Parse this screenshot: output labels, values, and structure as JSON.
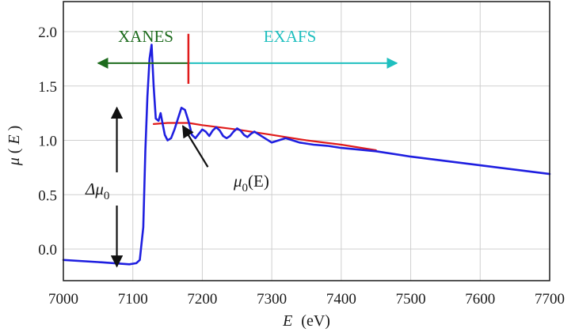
{
  "chart_data": {
    "type": "line",
    "xlim": [
      7000,
      7700
    ],
    "ylim": [
      -0.3,
      2.2
    ],
    "x_ticks": [
      7000,
      7100,
      7200,
      7300,
      7400,
      7500,
      7600,
      7700
    ],
    "y_ticks": [
      -0.0,
      0.5,
      1.0,
      1.5,
      2.0
    ],
    "y_tick_labels": [
      "0.0",
      "0.5",
      "1.0",
      "1.5",
      "2.0"
    ],
    "grid": true,
    "xlabel": {
      "var": "E",
      "unit": "(eV)"
    },
    "ylabel": {
      "var": "μ",
      "open": "(",
      "arg": "E",
      "close": ")"
    },
    "series": [
      {
        "color": "#1f1fe0",
        "x": [
          7000,
          7050,
          7095,
          7105,
          7110,
          7115,
          7118,
          7121,
          7124,
          7127,
          7130,
          7133,
          7137,
          7140,
          7143,
          7146,
          7150,
          7155,
          7160,
          7165,
          7170,
          7175,
          7180,
          7185,
          7190,
          7195,
          7200,
          7205,
          7210,
          7215,
          7220,
          7225,
          7230,
          7235,
          7240,
          7245,
          7250,
          7255,
          7260,
          7265,
          7270,
          7275,
          7280,
          7290,
          7300,
          7310,
          7320,
          7330,
          7340,
          7350,
          7360,
          7380,
          7400,
          7450,
          7500,
          7550,
          7600,
          7650,
          7700
        ],
        "y": [
          -0.1,
          -0.12,
          -0.14,
          -0.13,
          -0.1,
          0.2,
          0.9,
          1.4,
          1.75,
          1.88,
          1.5,
          1.2,
          1.18,
          1.25,
          1.15,
          1.05,
          1.0,
          1.02,
          1.1,
          1.2,
          1.3,
          1.28,
          1.18,
          1.05,
          1.02,
          1.06,
          1.1,
          1.08,
          1.04,
          1.09,
          1.12,
          1.09,
          1.04,
          1.02,
          1.04,
          1.08,
          1.11,
          1.09,
          1.05,
          1.03,
          1.06,
          1.08,
          1.06,
          1.02,
          0.98,
          1.0,
          1.02,
          1.0,
          0.98,
          0.97,
          0.96,
          0.95,
          0.93,
          0.9,
          0.85,
          0.81,
          0.77,
          0.73,
          0.69
        ]
      },
      {
        "color": "#e01b1b",
        "x": [
          7130,
          7150,
          7180,
          7200,
          7250,
          7300,
          7350,
          7400,
          7450
        ],
        "y": [
          1.15,
          1.16,
          1.16,
          1.14,
          1.1,
          1.05,
          1.0,
          0.96,
          0.91
        ]
      }
    ],
    "annotations": [
      {
        "text": "XANES",
        "color": "#1d6b1d"
      },
      {
        "text": "EXAFS",
        "color": "#1fbfbf"
      },
      {
        "text_main": "Δμ",
        "text_sub": "0",
        "color": "#1a1a1a"
      },
      {
        "text_main": "μ",
        "text_sub": "0",
        "text_tail": "(E)",
        "color": "#1a1a1a"
      }
    ],
    "xanes_arrow": {
      "x_from": 7180,
      "x_to": 7050,
      "y": 1.71,
      "color": "#1d6b1d"
    },
    "exafs_arrow": {
      "x_from": 7180,
      "x_to": 7480,
      "y": 1.71,
      "color": "#1fbfbf"
    },
    "edge_marker": {
      "x": 7180,
      "y_from": 1.52,
      "y_to": 1.98,
      "color": "#e01b1b"
    },
    "delta_mu_arrow": {
      "x": 7077,
      "y_top": 1.3,
      "y_bottom": -0.16
    },
    "mu0_arrow": {
      "x_from": 7208,
      "y_from": 0.9,
      "x_to": 7172,
      "y_to": 1.16
    }
  }
}
